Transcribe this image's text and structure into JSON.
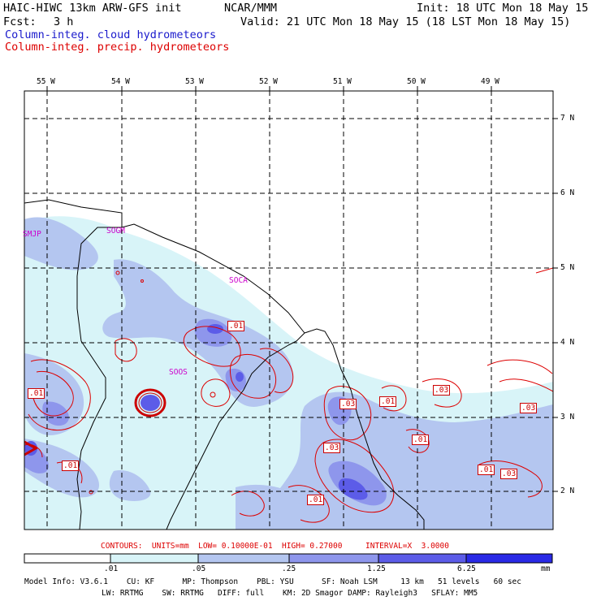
{
  "header": {
    "left_line1": "HAIC-HIWC 13km ARW-GFS init",
    "center_line1": "NCAR/MMM",
    "right_line1": "Init: 18 UTC Mon 18 May 15",
    "fcst_label": "Fcst:",
    "fcst_value": "3 h",
    "valid": "Valid: 21 UTC Mon 18 May 15 (18 LST Mon 18 May 15)",
    "field_cloud": "Column-integ. cloud hydrometeors",
    "field_precip": "Column-integ. precip. hydrometeors"
  },
  "colors": {
    "cloud_title": "#1a1acc",
    "precip_title": "#dd0000",
    "contour": "#dd0000",
    "coast": "#000000"
  },
  "map": {
    "lon_labels": [
      "55 W",
      "54 W",
      "53 W",
      "52 W",
      "51 W",
      "50 W",
      "49 W"
    ],
    "lat_labels": [
      "7 N",
      "6 N",
      "5 N",
      "4 N",
      "3 N",
      "2 N"
    ],
    "stations": [
      "SMJP",
      "SOGM",
      "SOCA",
      "SOOS"
    ],
    "contour_labels": [
      ".01",
      ".01",
      ".03",
      ".01",
      ".03",
      ".03",
      ".01",
      ".03",
      ".01",
      ".03",
      ".01",
      ".01"
    ]
  },
  "contours_note": "CONTOURS:  UNITS=mm  LOW= 0.10000E-01  HIGH= 0.27000     INTERVAL=X  3.0000",
  "colorbar": {
    "colors": [
      "#ffffff",
      "#d8f4f8",
      "#b4c6f0",
      "#8e96ec",
      "#5c5ce8",
      "#2a2ae6",
      "#0c0cdc"
    ],
    "labels": [
      ".01",
      ".05",
      ".25",
      "1.25",
      "6.25"
    ],
    "unit": "mm"
  },
  "model_info": {
    "line1": "Model Info: V3.6.1    CU: KF      MP: Thompson    PBL: YSU      SF: Noah LSM     13 km   51 levels   60 sec",
    "line2": "LW: RRTMG    SW: RRTMG   DIFF: full    KM: 2D Smagor DAMP: Rayleigh3   SFLAY: MM5"
  }
}
